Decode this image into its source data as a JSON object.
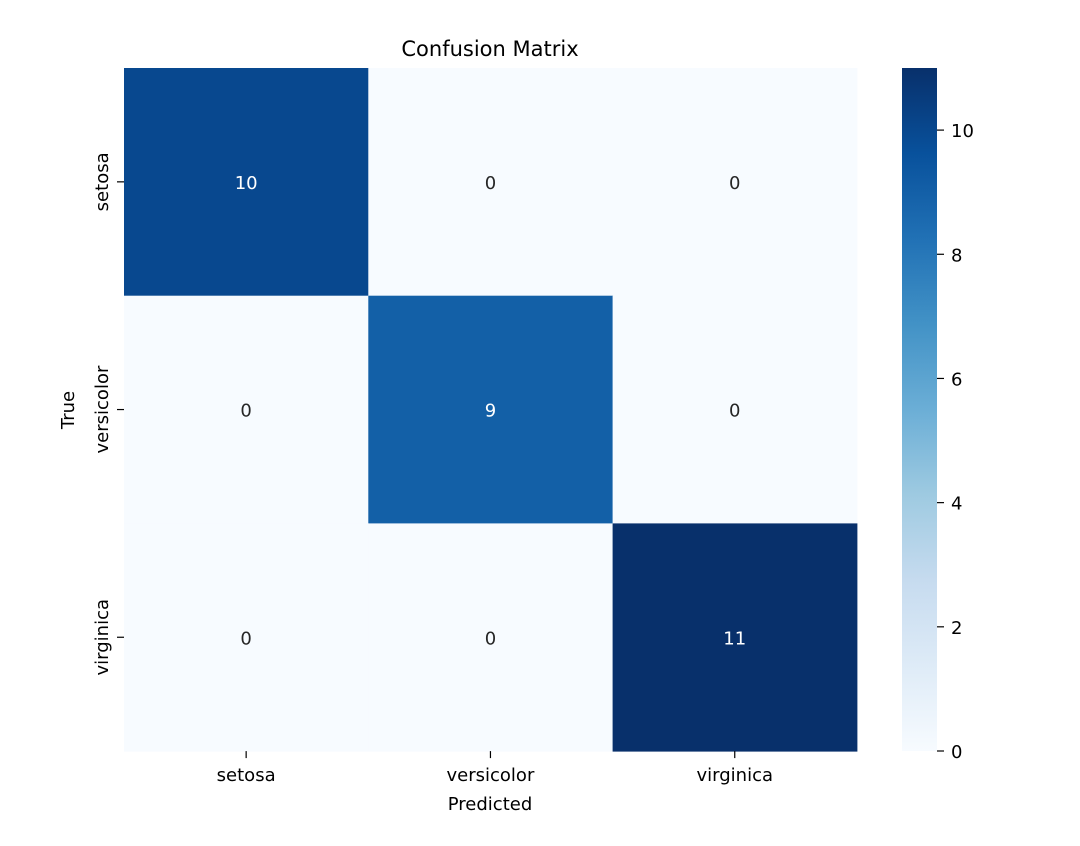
{
  "chart_data": {
    "type": "heatmap",
    "title": "Confusion Matrix",
    "xlabel": "Predicted",
    "ylabel": "True",
    "x_categories": [
      "setosa",
      "versicolor",
      "virginica"
    ],
    "y_categories": [
      "setosa",
      "versicolor",
      "virginica"
    ],
    "values": [
      [
        10,
        0,
        0
      ],
      [
        0,
        9,
        0
      ],
      [
        0,
        0,
        11
      ]
    ],
    "colorbar": {
      "range": [
        0,
        11
      ],
      "ticks": [
        0,
        2,
        4,
        6,
        8,
        10
      ],
      "colormap": "Blues"
    },
    "colors": {
      "low": "#f7fbff",
      "high": "#08306b"
    }
  }
}
